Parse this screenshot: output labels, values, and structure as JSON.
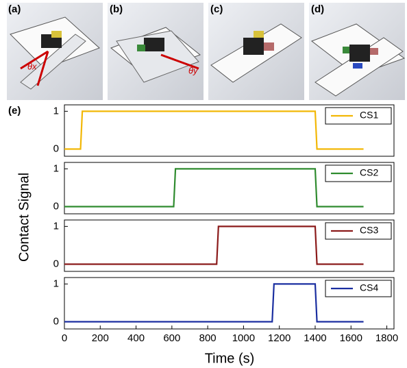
{
  "panels": {
    "labels": [
      "(a)",
      "(b)",
      "(c)",
      "(d)",
      "(e)"
    ],
    "annotations": [
      "θx",
      "θy"
    ]
  },
  "shared_axes": {
    "ylabel": "Contact Signal",
    "xlabel": "Time (s)"
  },
  "chart_data": [
    {
      "type": "line",
      "x": [
        0,
        90,
        100,
        1400,
        1410,
        1670
      ],
      "series": [
        {
          "name": "CS1",
          "color": "#f2b705",
          "values": [
            0,
            0,
            1,
            1,
            0,
            0
          ]
        }
      ],
      "xlim": [
        0,
        1840
      ],
      "ylim": [
        -0.19,
        1.17
      ],
      "yticks": [
        0,
        1
      ]
    },
    {
      "type": "line",
      "x": [
        0,
        610,
        620,
        1400,
        1410,
        1670
      ],
      "series": [
        {
          "name": "CS2",
          "color": "#2e8b2e",
          "values": [
            0,
            0,
            1,
            1,
            0,
            0
          ]
        }
      ],
      "xlim": [
        0,
        1840
      ],
      "ylim": [
        -0.19,
        1.17
      ],
      "yticks": [
        0,
        1
      ]
    },
    {
      "type": "line",
      "x": [
        0,
        850,
        860,
        1400,
        1410,
        1670
      ],
      "series": [
        {
          "name": "CS3",
          "color": "#8b1a1a",
          "values": [
            0,
            0,
            1,
            1,
            0,
            0
          ]
        }
      ],
      "xlim": [
        0,
        1840
      ],
      "ylim": [
        -0.19,
        1.17
      ],
      "yticks": [
        0,
        1
      ]
    },
    {
      "type": "line",
      "x": [
        0,
        1160,
        1170,
        1400,
        1410,
        1670
      ],
      "series": [
        {
          "name": "CS4",
          "color": "#1a2ea0",
          "values": [
            0,
            0,
            1,
            1,
            0,
            0
          ]
        }
      ],
      "xlim": [
        0,
        1840
      ],
      "ylim": [
        -0.19,
        1.17
      ],
      "yticks": [
        0,
        1
      ],
      "xticks": [
        0,
        200,
        400,
        600,
        800,
        1000,
        1200,
        1400,
        1600,
        1800
      ]
    }
  ]
}
